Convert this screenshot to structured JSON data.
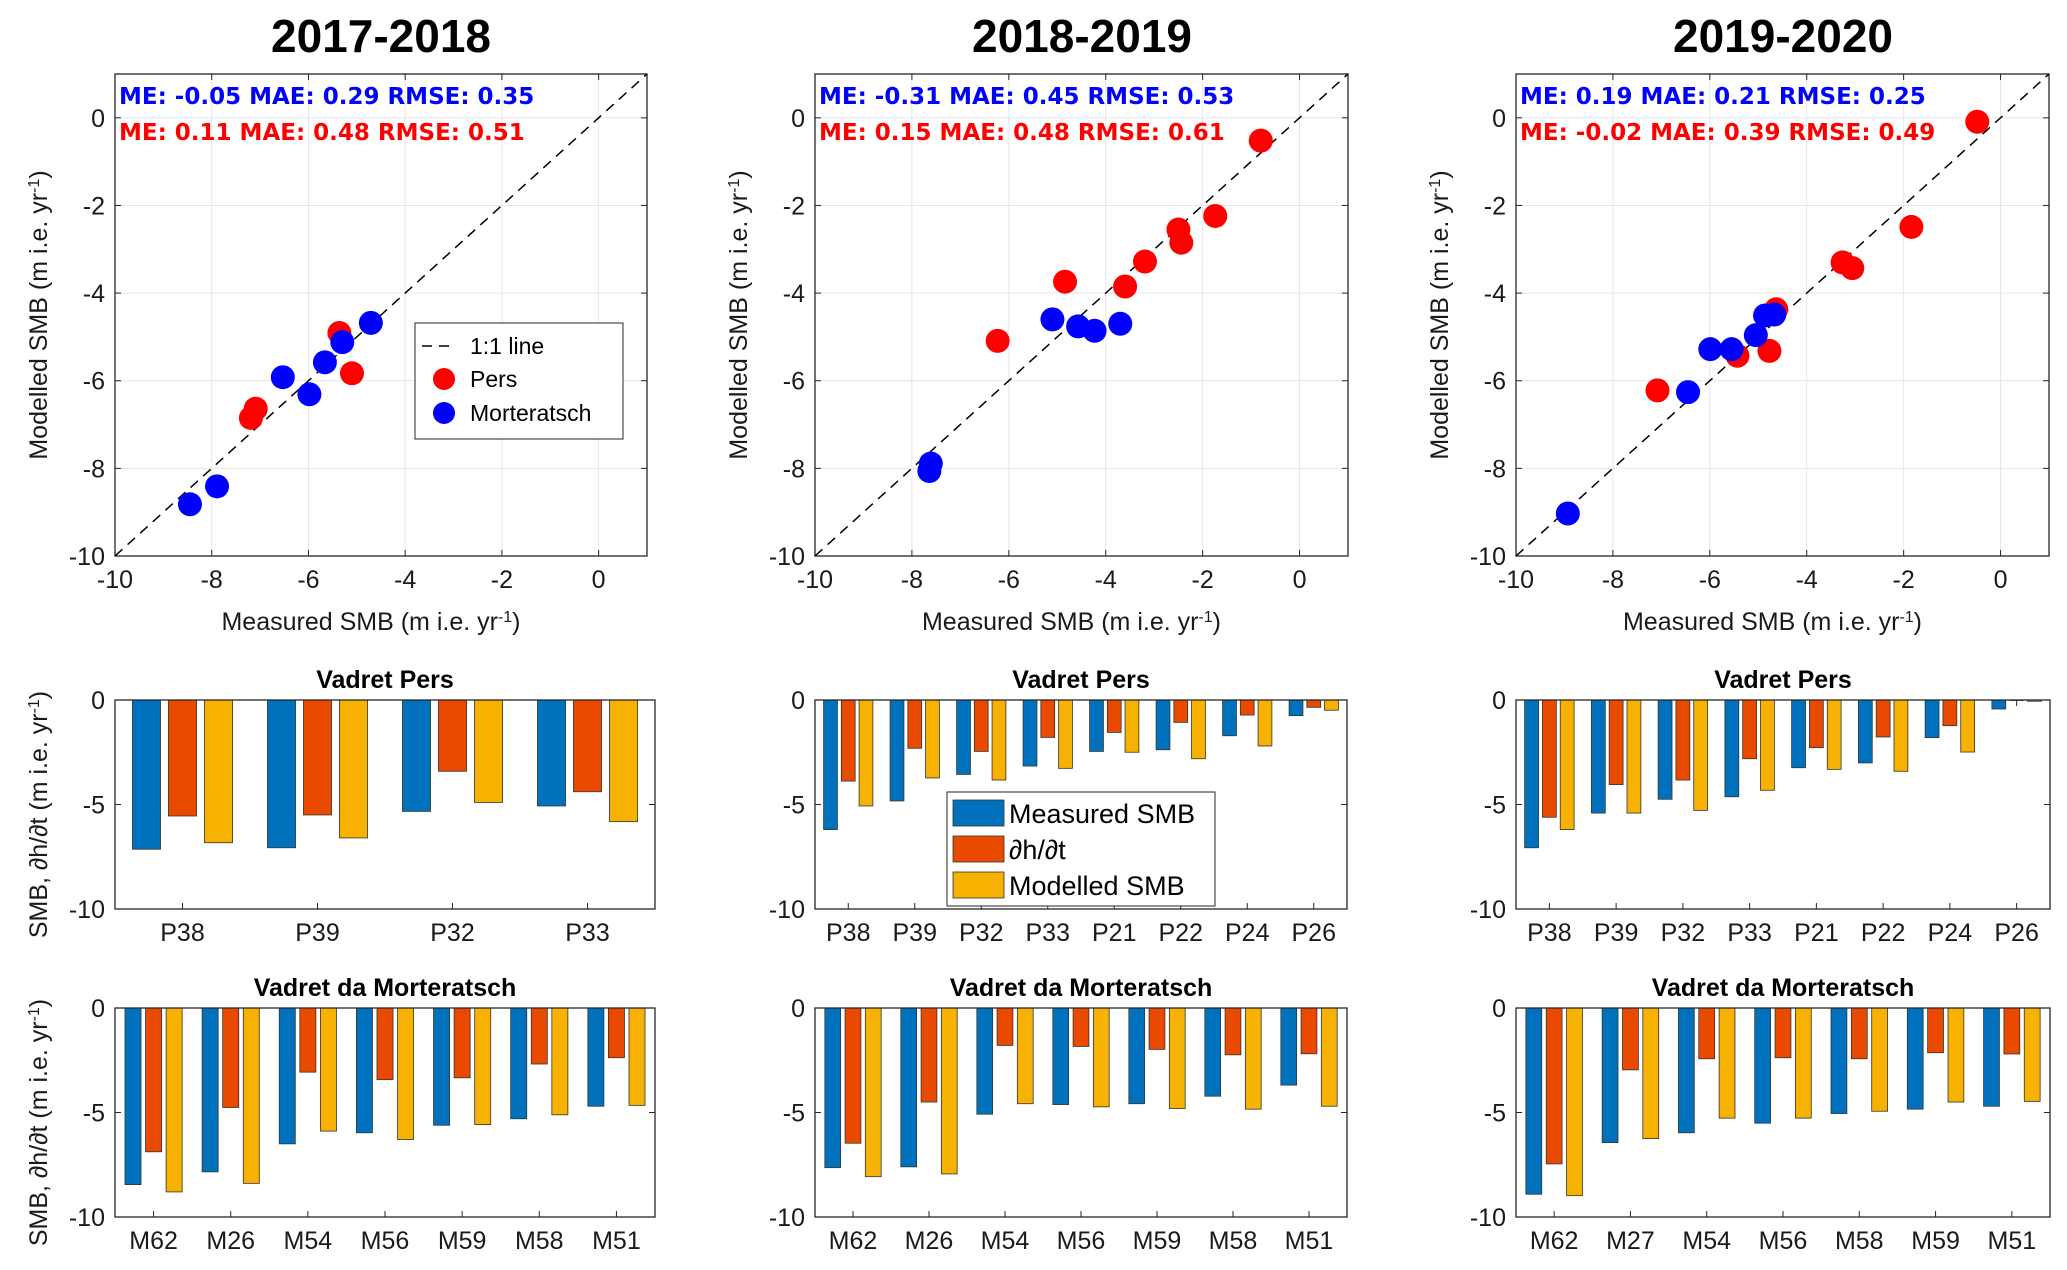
{
  "colors": {
    "pers": "#ff0000",
    "morteratsch": "#0000ff",
    "measured_smb": "#0072bd",
    "dhdt": "#ea4a00",
    "modelled_smb": "#f7b100",
    "one_to_one": "#000000"
  },
  "chart_data": [
    {
      "type": "scatter",
      "panel": "2017-2018 scatter",
      "title": "2017-2018",
      "xlabel": "Measured SMB (m i.e. yr",
      "ylabel": "Modelled SMB (m i.e. yr",
      "unit_superscript": "-1",
      "xlim": [
        -10,
        1
      ],
      "ylim": [
        -10,
        1
      ],
      "xticks": [
        "-10",
        "-8",
        "-6",
        "-4",
        "-2",
        "0"
      ],
      "yticks": [
        "-10",
        "-8",
        "-6",
        "-4",
        "-2",
        "0"
      ],
      "grid": true,
      "stats": [
        {
          "series": "Morteratsch",
          "text": "ME: -0.05 MAE: 0.29  RMSE: 0.35"
        },
        {
          "series": "Pers",
          "text": "ME: 0.11 MAE: 0.48  RMSE: 0.51"
        }
      ],
      "legend": {
        "placement": "center-right",
        "entries": [
          "1:1 line",
          "Pers",
          "Morteratsch"
        ]
      },
      "series": [
        {
          "name": "Pers",
          "points": [
            [
              -5.36,
              -4.91
            ],
            [
              -5.1,
              -5.83
            ],
            [
              -7.09,
              -6.64
            ],
            [
              -7.19,
              -6.85
            ]
          ]
        },
        {
          "name": "Morteratsch",
          "points": [
            [
              -4.71,
              -4.68
            ],
            [
              -5.3,
              -5.12
            ],
            [
              -5.66,
              -5.58
            ],
            [
              -6.53,
              -5.92
            ],
            [
              -5.98,
              -6.31
            ],
            [
              -7.89,
              -8.41
            ],
            [
              -8.45,
              -8.82
            ]
          ]
        }
      ]
    },
    {
      "type": "scatter",
      "panel": "2018-2019 scatter",
      "title": "2018-2019",
      "xlabel": "Measured SMB (m i.e. yr",
      "ylabel": "Modelled SMB (m i.e. yr",
      "unit_superscript": "-1",
      "xlim": [
        -10,
        1
      ],
      "ylim": [
        -10,
        1
      ],
      "xticks": [
        "-10",
        "-8",
        "-6",
        "-4",
        "-2",
        "0"
      ],
      "yticks": [
        "-10",
        "-8",
        "-6",
        "-4",
        "-2",
        "0"
      ],
      "grid": true,
      "stats": [
        {
          "series": "Morteratsch",
          "text": "ME: -0.31 MAE: 0.45  RMSE: 0.53"
        },
        {
          "series": "Pers",
          "text": "ME: 0.15 MAE: 0.48  RMSE: 0.61"
        }
      ],
      "legend": null,
      "series": [
        {
          "name": "Pers",
          "points": [
            [
              -0.8,
              -0.52
            ],
            [
              -1.74,
              -2.24
            ],
            [
              -2.5,
              -2.55
            ],
            [
              -2.44,
              -2.85
            ],
            [
              -3.19,
              -3.28
            ],
            [
              -3.6,
              -3.85
            ],
            [
              -4.84,
              -3.74
            ],
            [
              -6.23,
              -5.09
            ]
          ]
        },
        {
          "name": "Morteratsch",
          "points": [
            [
              -5.1,
              -4.6
            ],
            [
              -4.57,
              -4.76
            ],
            [
              -4.23,
              -4.86
            ],
            [
              -3.7,
              -4.7
            ],
            [
              -7.61,
              -7.89
            ],
            [
              -7.64,
              -8.06
            ]
          ]
        }
      ]
    },
    {
      "type": "scatter",
      "panel": "2019-2020 scatter",
      "title": "2019-2020",
      "xlabel": "Measured SMB (m i.e. yr",
      "ylabel": "Modelled SMB (m i.e. yr",
      "unit_superscript": "-1",
      "xlim": [
        -10,
        1
      ],
      "ylim": [
        -10,
        1
      ],
      "xticks": [
        "-10",
        "-8",
        "-6",
        "-4",
        "-2",
        "0"
      ],
      "yticks": [
        "-10",
        "-8",
        "-6",
        "-4",
        "-2",
        "0"
      ],
      "grid": true,
      "stats": [
        {
          "series": "Morteratsch",
          "text": "ME: 0.19 MAE: 0.21  RMSE: 0.25"
        },
        {
          "series": "Pers",
          "text": "ME: -0.02 MAE: 0.39  RMSE: 0.49"
        }
      ],
      "legend": null,
      "series": [
        {
          "name": "Pers",
          "points": [
            [
              -0.48,
              -0.09
            ],
            [
              -1.84,
              -2.49
            ],
            [
              -3.26,
              -3.3
            ],
            [
              -3.06,
              -3.43
            ],
            [
              -4.63,
              -4.37
            ],
            [
              -4.77,
              -5.32
            ],
            [
              -5.43,
              -5.43
            ],
            [
              -7.08,
              -6.22
            ]
          ]
        },
        {
          "name": "Morteratsch",
          "points": [
            [
              -4.67,
              -4.49
            ],
            [
              -4.86,
              -4.51
            ],
            [
              -5.05,
              -4.96
            ],
            [
              -5.55,
              -5.28
            ],
            [
              -5.99,
              -5.28
            ],
            [
              -6.45,
              -6.26
            ],
            [
              -8.93,
              -9.03
            ]
          ]
        }
      ]
    },
    {
      "type": "bar",
      "panel": "2017-2018 Vadret Pers",
      "title": "Vadret Pers",
      "ylabel": "SMB,  ∂h/∂t (m i.e. yr",
      "unit_superscript": "-1",
      "ylim": [
        -10,
        0
      ],
      "yticks": [
        "-10",
        "-5",
        "0"
      ],
      "grid": false,
      "legend": null,
      "categories": [
        "P38",
        "P39",
        "P32",
        "P33"
      ],
      "series": [
        {
          "name": "Measured SMB",
          "values": [
            -7.14,
            -7.07,
            -5.33,
            -5.07
          ]
        },
        {
          "name": "∂h/∂t",
          "values": [
            -5.55,
            -5.5,
            -3.41,
            -4.39
          ]
        },
        {
          "name": "Modelled SMB",
          "values": [
            -6.83,
            -6.6,
            -4.9,
            -5.82
          ]
        }
      ]
    },
    {
      "type": "bar",
      "panel": "2018-2019 Vadret Pers",
      "title": "Vadret Pers",
      "ylabel": "",
      "ylim": [
        -10,
        0
      ],
      "yticks": [
        "-10",
        "-5",
        "0"
      ],
      "grid": false,
      "legend": {
        "placement": "lower-center",
        "entries": [
          "Measured SMB",
          "∂h/∂t",
          "Modelled SMB"
        ]
      },
      "categories": [
        "P38",
        "P39",
        "P32",
        "P33",
        "P21",
        "P22",
        "P24",
        "P26"
      ],
      "series": [
        {
          "name": "Measured SMB",
          "values": [
            -6.2,
            -4.83,
            -3.56,
            -3.16,
            -2.46,
            -2.38,
            -1.71,
            -0.75
          ]
        },
        {
          "name": "∂h/∂t",
          "values": [
            -3.88,
            -2.31,
            -2.46,
            -1.79,
            -1.55,
            -1.07,
            -0.72,
            -0.35
          ]
        },
        {
          "name": "Modelled SMB",
          "values": [
            -5.07,
            -3.73,
            -3.83,
            -3.27,
            -2.5,
            -2.81,
            -2.2,
            -0.49
          ]
        }
      ]
    },
    {
      "type": "bar",
      "panel": "2019-2020 Vadret Pers",
      "title": "Vadret Pers",
      "ylabel": "",
      "ylim": [
        -10,
        0
      ],
      "yticks": [
        "-10",
        "-5",
        "0"
      ],
      "grid": false,
      "legend": null,
      "categories": [
        "P38",
        "P39",
        "P32",
        "P33",
        "P21",
        "P22",
        "P24",
        "P26"
      ],
      "series": [
        {
          "name": "Measured SMB",
          "values": [
            -7.07,
            -5.41,
            -4.75,
            -4.63,
            -3.24,
            -3.01,
            -1.8,
            -0.43
          ]
        },
        {
          "name": "∂h/∂t",
          "values": [
            -5.61,
            -4.05,
            -3.83,
            -2.81,
            -2.28,
            -1.77,
            -1.23,
            0.0
          ]
        },
        {
          "name": "Modelled SMB",
          "values": [
            -6.2,
            -5.41,
            -5.28,
            -4.32,
            -3.32,
            -3.41,
            -2.49,
            -0.06
          ]
        }
      ]
    },
    {
      "type": "bar",
      "panel": "2017-2018 Vadret da Morteratsch",
      "title": "Vadret da Morteratsch",
      "ylabel": "SMB,  ∂h/∂t (m i.e. yr",
      "unit_superscript": "-1",
      "ylim": [
        -10,
        0
      ],
      "yticks": [
        "-10",
        "-5",
        "0"
      ],
      "grid": false,
      "legend": null,
      "categories": [
        "M62",
        "M26",
        "M54",
        "M56",
        "M59",
        "M58",
        "M51"
      ],
      "series": [
        {
          "name": "Measured SMB",
          "values": [
            -8.45,
            -7.84,
            -6.5,
            -5.97,
            -5.61,
            -5.3,
            -4.7
          ]
        },
        {
          "name": "∂h/∂t",
          "values": [
            -6.88,
            -4.76,
            -3.07,
            -3.43,
            -3.34,
            -2.68,
            -2.38
          ]
        },
        {
          "name": "Modelled SMB",
          "values": [
            -8.8,
            -8.39,
            -5.89,
            -6.29,
            -5.58,
            -5.11,
            -4.66
          ]
        }
      ]
    },
    {
      "type": "bar",
      "panel": "2018-2019 Vadret da Morteratsch",
      "title": "Vadret da Morteratsch",
      "ylabel": "",
      "ylim": [
        -10,
        0
      ],
      "yticks": [
        "-10",
        "-5",
        "0"
      ],
      "grid": false,
      "legend": null,
      "categories": [
        "M62",
        "M26",
        "M54",
        "M56",
        "M59",
        "M58",
        "M51"
      ],
      "series": [
        {
          "name": "Measured SMB",
          "values": [
            -7.64,
            -7.6,
            -5.08,
            -4.62,
            -4.58,
            -4.22,
            -3.69
          ]
        },
        {
          "name": "∂h/∂t",
          "values": [
            -6.47,
            -4.5,
            -1.79,
            -1.84,
            -1.98,
            -2.24,
            -2.19
          ]
        },
        {
          "name": "Modelled SMB",
          "values": [
            -8.07,
            -7.94,
            -4.58,
            -4.73,
            -4.81,
            -4.84,
            -4.7
          ]
        }
      ]
    },
    {
      "type": "bar",
      "panel": "2019-2020 Vadret da Morteratsch",
      "title": "Vadret da Morteratsch",
      "ylabel": "",
      "ylim": [
        -10,
        0
      ],
      "yticks": [
        "-10",
        "-5",
        "0"
      ],
      "grid": false,
      "legend": null,
      "categories": [
        "M62",
        "M27",
        "M54",
        "M56",
        "M58",
        "M59",
        "M51"
      ],
      "series": [
        {
          "name": "Measured SMB",
          "values": [
            -8.91,
            -6.44,
            -5.97,
            -5.51,
            -5.05,
            -4.84,
            -4.7
          ]
        },
        {
          "name": "∂h/∂t",
          "values": [
            -7.46,
            -2.96,
            -2.43,
            -2.38,
            -2.43,
            -2.14,
            -2.2
          ]
        },
        {
          "name": "Modelled SMB",
          "values": [
            -8.98,
            -6.25,
            -5.27,
            -5.27,
            -4.94,
            -4.5,
            -4.47
          ]
        }
      ]
    }
  ]
}
